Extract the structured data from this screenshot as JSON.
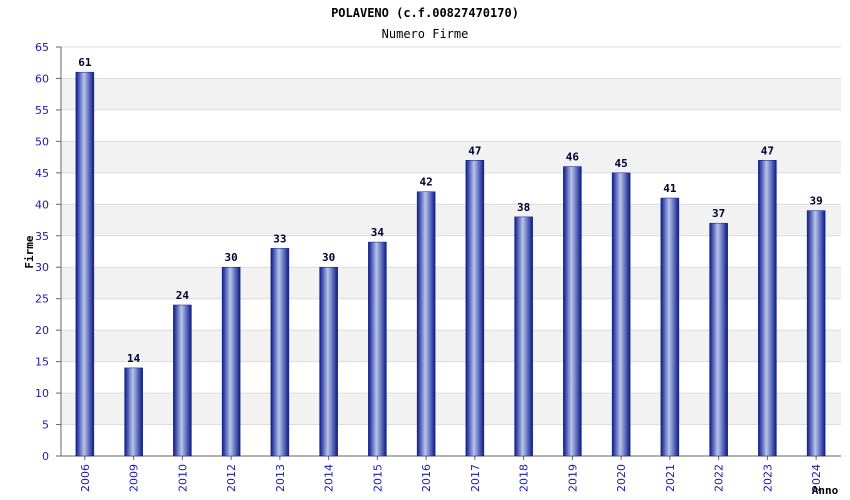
{
  "chart_data": {
    "type": "bar",
    "title": "POLAVENO (c.f.00827470170)",
    "subtitle": "Numero Firme",
    "xlabel": "Anno",
    "ylabel": "Firme",
    "ylim": [
      0,
      65
    ],
    "yticks": [
      0,
      5,
      10,
      15,
      20,
      25,
      30,
      35,
      40,
      45,
      50,
      55,
      60,
      65
    ],
    "categories": [
      "2006",
      "2009",
      "2010",
      "2012",
      "2013",
      "2014",
      "2015",
      "2016",
      "2017",
      "2018",
      "2019",
      "2020",
      "2021",
      "2022",
      "2023",
      "2024"
    ],
    "values": [
      61,
      14,
      24,
      30,
      33,
      30,
      34,
      42,
      47,
      38,
      46,
      45,
      41,
      37,
      47,
      39
    ],
    "grid": true,
    "colors": {
      "bar_edge": "#0a1a8a",
      "bar_mid": "#b8c4ec",
      "band": "#f2f2f2",
      "tick_text": "#1a1ab0"
    }
  }
}
